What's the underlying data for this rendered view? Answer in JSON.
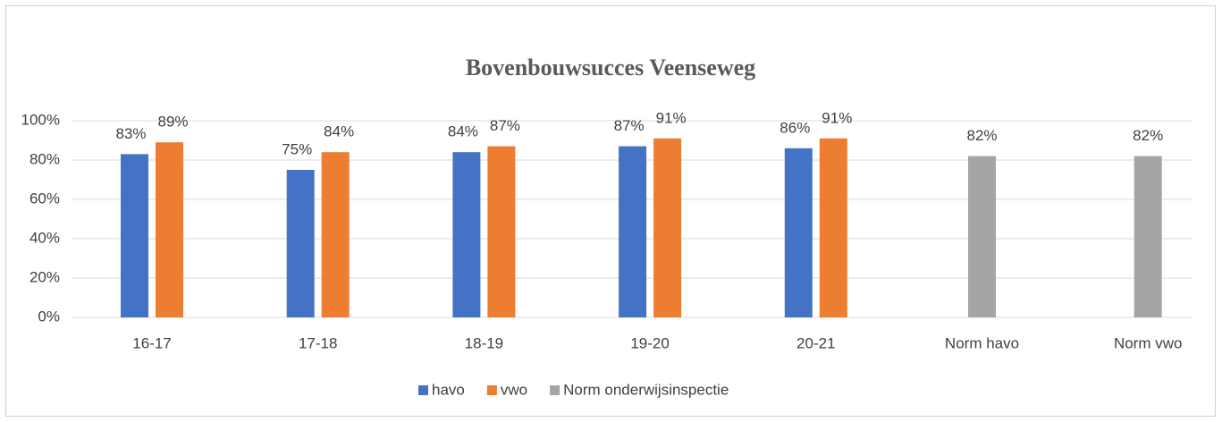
{
  "chart_data": {
    "type": "bar",
    "title": "Bovenbouwsucces Veenseweg",
    "categories": [
      "16-17",
      "17-18",
      "18-19",
      "19-20",
      "20-21",
      "Norm havo",
      "Norm vwo"
    ],
    "series": [
      {
        "name": "havo",
        "color": "#4472c4",
        "values": [
          83,
          75,
          84,
          87,
          86,
          null,
          null
        ],
        "value_labels": [
          "83%",
          "75%",
          "84%",
          "87%",
          "86%",
          null,
          null
        ]
      },
      {
        "name": "vwo",
        "color": "#ed7d31",
        "values": [
          89,
          84,
          87,
          91,
          91,
          null,
          null
        ],
        "value_labels": [
          "89%",
          "84%",
          "87%",
          "91%",
          "91%",
          null,
          null
        ]
      },
      {
        "name": "Norm onderwijsinspectie",
        "color": "#a5a5a5",
        "values": [
          null,
          null,
          null,
          null,
          null,
          82,
          82
        ],
        "value_labels": [
          null,
          null,
          null,
          null,
          null,
          "82%",
          "82%"
        ]
      }
    ],
    "ylim": [
      0,
      100
    ],
    "yticks": [
      {
        "value": 0,
        "label": "0%"
      },
      {
        "value": 20,
        "label": "20%"
      },
      {
        "value": 40,
        "label": "40%"
      },
      {
        "value": 60,
        "label": "60%"
      },
      {
        "value": 80,
        "label": "80%"
      },
      {
        "value": 100,
        "label": "100%"
      }
    ],
    "grid": true,
    "legend": "bottom"
  }
}
